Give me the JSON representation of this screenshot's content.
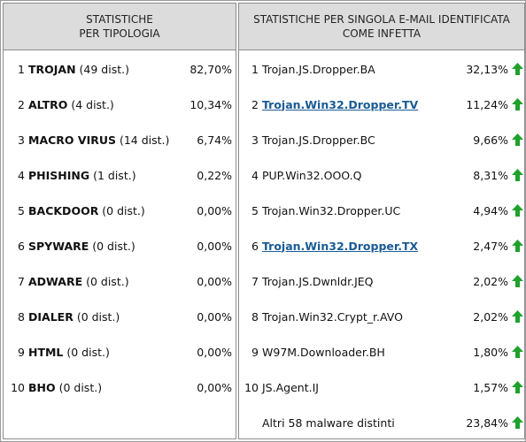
{
  "left_panel": {
    "header_line1": "STATISTICHE",
    "header_line2": "PER TIPOLOGIA",
    "rows": [
      {
        "num": "1",
        "name": "TROJAN",
        "detail": " (49 dist.)",
        "pct": "82,70%"
      },
      {
        "num": "2",
        "name": "ALTRO",
        "detail": " (4 dist.)",
        "pct": "10,34%"
      },
      {
        "num": "3",
        "name": "MACRO VIRUS",
        "detail": " (14 dist.)",
        "pct": "6,74%"
      },
      {
        "num": "4",
        "name": "PHISHING",
        "detail": " (1 dist.)",
        "pct": "0,22%"
      },
      {
        "num": "5",
        "name": "BACKDOOR",
        "detail": " (0 dist.)",
        "pct": "0,00%"
      },
      {
        "num": "6",
        "name": "SPYWARE",
        "detail": " (0 dist.)",
        "pct": "0,00%"
      },
      {
        "num": "7",
        "name": "ADWARE",
        "detail": " (0 dist.)",
        "pct": "0,00%"
      },
      {
        "num": "8",
        "name": "DIALER",
        "detail": " (0 dist.)",
        "pct": "0,00%"
      },
      {
        "num": "9",
        "name": "HTML",
        "detail": " (0 dist.)",
        "pct": "0,00%"
      },
      {
        "num": "10",
        "name": "BHO",
        "detail": " (0 dist.)",
        "pct": "0,00%"
      }
    ]
  },
  "right_panel": {
    "header_line1": "STATISTICHE PER SINGOLA E-MAIL IDENTIFICATA",
    "header_line2": "COME INFETTA",
    "rows": [
      {
        "num": "1",
        "name": "Trojan.JS.Dropper.BA",
        "pct": "32,13%"
      },
      {
        "num": "2",
        "name": "Trojan.Win32.Dropper.TV",
        "pct": "11,24%"
      },
      {
        "num": "3",
        "name": "Trojan.JS.Dropper.BC",
        "pct": "9,66%"
      },
      {
        "num": "4",
        "name": "PUP.Win32.OOO.Q",
        "pct": "8,31%"
      },
      {
        "num": "5",
        "name": "Trojan.Win32.Dropper.UC",
        "pct": "4,94%"
      },
      {
        "num": "6",
        "name": "Trojan.Win32.Dropper.TX",
        "pct": "2,47%"
      },
      {
        "num": "7",
        "name": "Trojan.JS.Dwnldr.JEQ",
        "pct": "2,02%"
      },
      {
        "num": "8",
        "name": "Trojan.Win32.Crypt_r.AVO",
        "pct": "2,02%"
      },
      {
        "num": "9",
        "name": "W97M.Downloader.BH",
        "pct": "1,80%"
      },
      {
        "num": "10",
        "name": "JS.Agent.IJ",
        "pct": "1,57%"
      }
    ],
    "other": {
      "label": "Altri 58 malware distinti",
      "pct": "23,84%"
    }
  },
  "colors": {
    "arrow": "#1fa12b",
    "link": "#1a5b94",
    "header_bg": "#dcdcdc"
  },
  "icons": {
    "trend": "green-up-arrow-icon"
  }
}
